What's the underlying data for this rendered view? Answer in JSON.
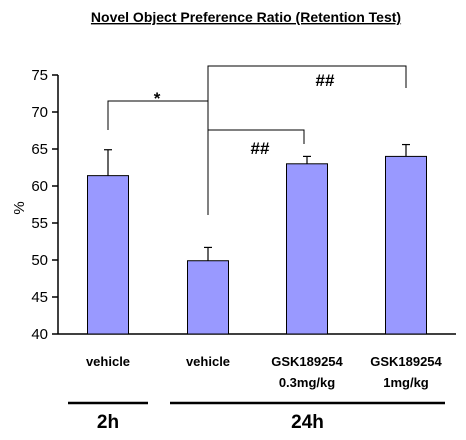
{
  "chart_data": {
    "type": "bar",
    "title": "Novel Object Preference Ratio (Retention Test)",
    "ylabel": "%",
    "ylim": [
      40,
      75
    ],
    "yticks": [
      40,
      45,
      50,
      55,
      60,
      65,
      70,
      75
    ],
    "categories": [
      [
        "vehicle"
      ],
      [
        "vehicle"
      ],
      [
        "GSK189254",
        "0.3mg/kg"
      ],
      [
        "GSK189254",
        "1mg/kg"
      ]
    ],
    "values": [
      61.4,
      49.9,
      63.0,
      64.0
    ],
    "errors": [
      3.5,
      1.8,
      1.0,
      1.6
    ],
    "bar_color": "#9999ff",
    "groups": [
      {
        "label": "2h",
        "categories": [
          0
        ]
      },
      {
        "label": "24h",
        "categories": [
          1,
          2,
          3
        ]
      }
    ],
    "significance": [
      {
        "label": "*",
        "from": 0,
        "to": 1
      },
      {
        "label": "##",
        "from": 1,
        "to": 2
      },
      {
        "label": "##",
        "from": 1,
        "to": 3
      }
    ]
  }
}
